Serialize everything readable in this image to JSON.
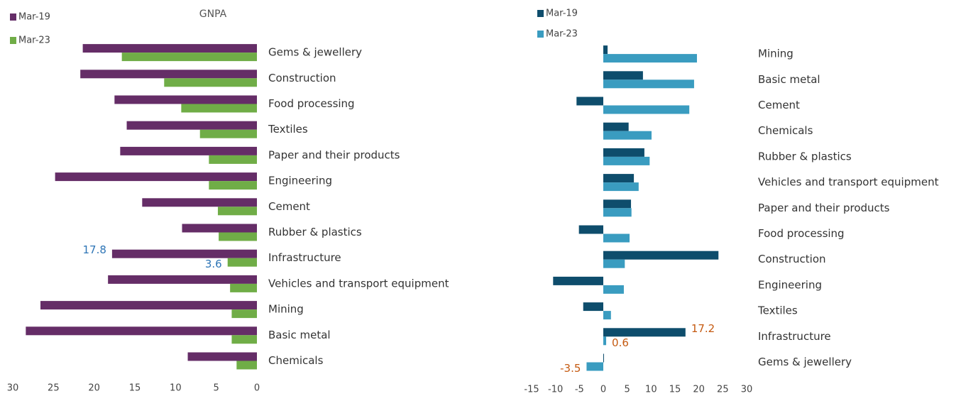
{
  "chart_data": [
    {
      "type": "bar",
      "title": "GNPA",
      "categories": [
        "Gems & jewellery",
        "Construction",
        "Food processing",
        "Textiles",
        "Paper and their products",
        "Engineering",
        "Cement",
        "Rubber & plastics",
        "Infrastructure",
        "Vehicles and transport equipment",
        "Mining",
        "Basic metal",
        "Chemicals"
      ],
      "series": [
        {
          "name": "Mar-19",
          "color": "#652d67",
          "values": [
            21.4,
            21.7,
            17.5,
            16.0,
            16.8,
            24.8,
            14.1,
            9.2,
            17.8,
            18.3,
            26.6,
            28.4,
            8.5
          ],
          "value_labels": [
            null,
            null,
            null,
            null,
            null,
            null,
            null,
            null,
            "17.8",
            null,
            null,
            null,
            null
          ],
          "label_color": "#2e75b6"
        },
        {
          "name": "Mar-23",
          "color": "#70ad47",
          "values": [
            16.6,
            11.4,
            9.3,
            7.0,
            5.9,
            5.9,
            4.8,
            4.7,
            3.6,
            3.3,
            3.1,
            3.1,
            2.5
          ],
          "value_labels": [
            null,
            null,
            null,
            null,
            null,
            null,
            null,
            null,
            "3.6",
            null,
            null,
            null,
            null
          ],
          "label_color": "#2e75b6"
        }
      ],
      "xlim": [
        30,
        0
      ],
      "xticks": [
        30,
        25,
        20,
        15,
        10,
        5,
        0
      ]
    },
    {
      "type": "bar",
      "categories": [
        "Mining",
        "Basic metal",
        "Cement",
        "Chemicals",
        "Rubber & plastics",
        "Vehicles and transport equipment",
        "Paper and their products",
        "Food processing",
        "Construction",
        "Engineering",
        "Textiles",
        "Infrastructure",
        "Gems & jewellery"
      ],
      "series": [
        {
          "name": "Mar-19",
          "color": "#0e4d6c",
          "values": [
            0.9,
            8.3,
            -5.6,
            5.3,
            8.6,
            6.4,
            5.8,
            -5.1,
            24.1,
            -10.5,
            -4.2,
            17.2,
            0.1
          ],
          "value_labels": [
            null,
            null,
            null,
            null,
            null,
            null,
            null,
            null,
            null,
            null,
            null,
            "17.2",
            null
          ],
          "label_color": "#c55a11"
        },
        {
          "name": "Mar-23",
          "color": "#3a9cc0",
          "values": [
            19.6,
            19.0,
            18.0,
            10.1,
            9.7,
            7.4,
            5.9,
            5.5,
            4.5,
            4.3,
            1.6,
            0.6,
            -3.5
          ],
          "value_labels": [
            null,
            null,
            null,
            null,
            null,
            null,
            null,
            null,
            null,
            null,
            null,
            "0.6",
            "-3.5"
          ],
          "label_color": "#c55a11"
        }
      ],
      "xlim": [
        -15,
        30
      ],
      "xticks": [
        -15,
        -10,
        -5,
        0,
        5,
        10,
        15,
        20,
        25,
        30
      ]
    }
  ]
}
